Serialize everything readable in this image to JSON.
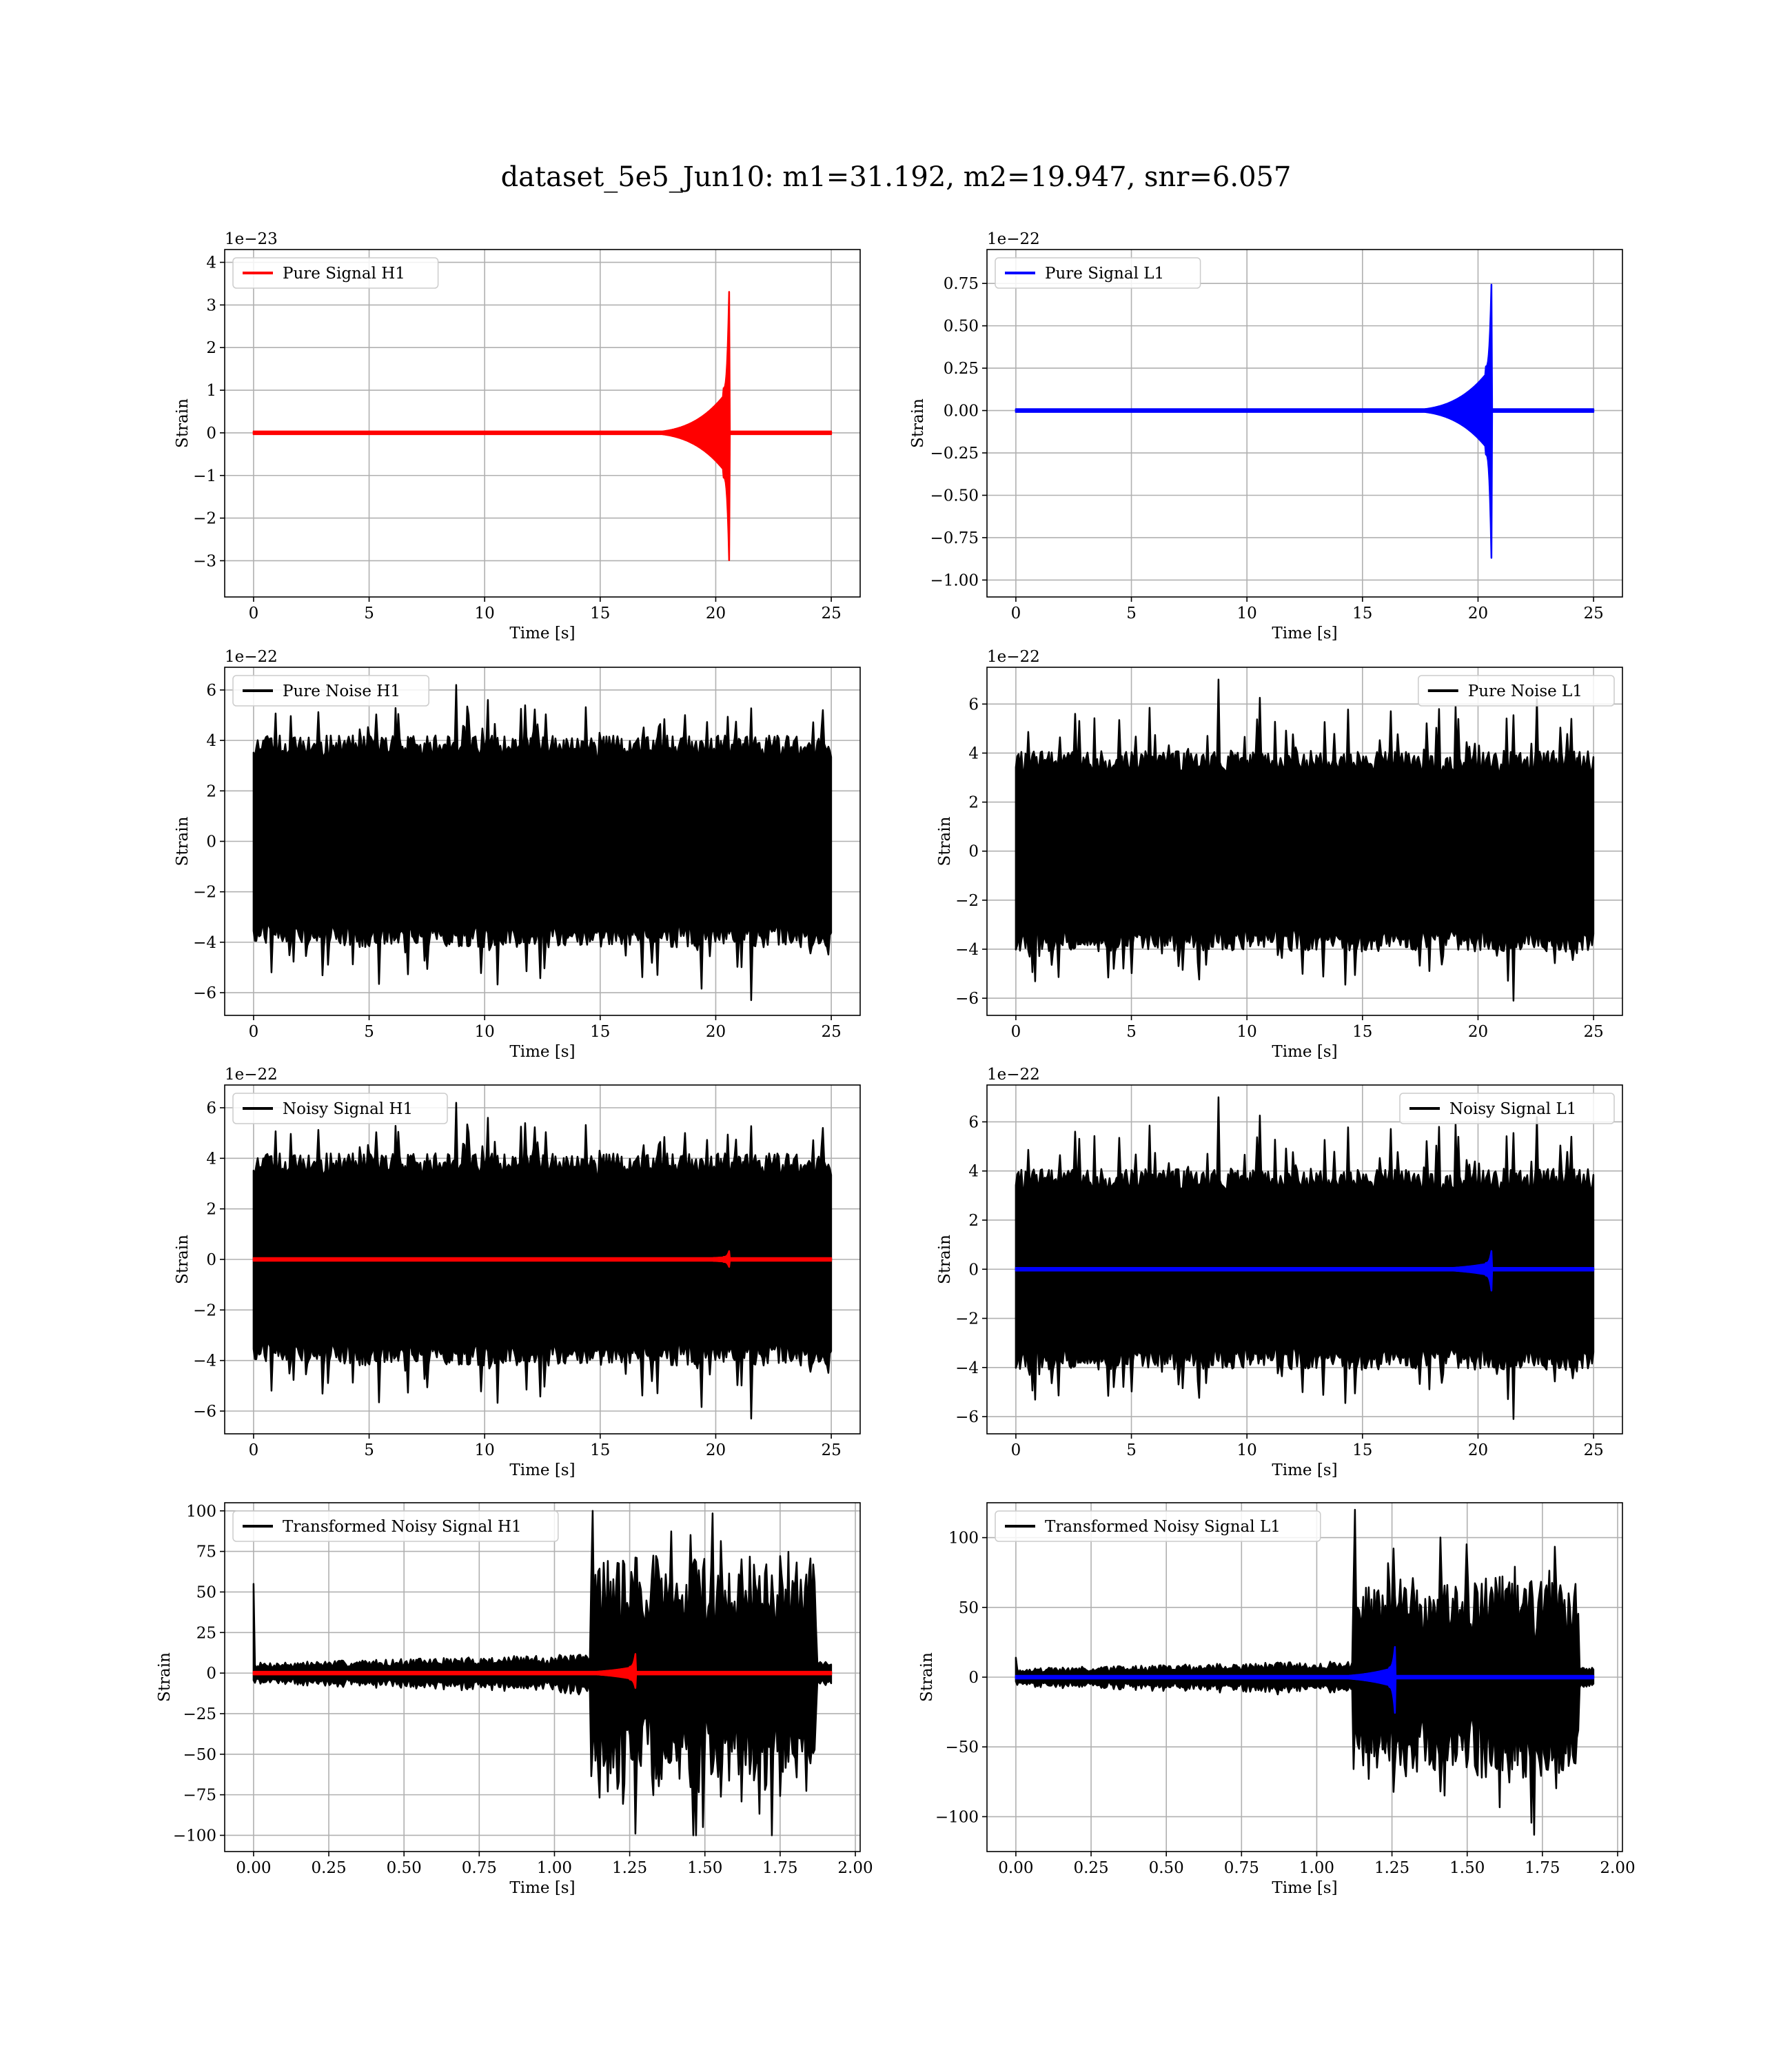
{
  "figure": {
    "suptitle": "dataset_5e5_Jun10: m1=31.192, m2=19.947, snr=6.057"
  },
  "colors": {
    "h1_signal": "#ff0000",
    "l1_signal": "#0000ff",
    "noise": "#000000",
    "grid": "#b0b0b0"
  },
  "chart_data": [
    {
      "type": "line",
      "panel": "pure-signal-h1",
      "xlabel": "Time [s]",
      "ylabel": "Strain",
      "offset_text": "1e−23",
      "xlim": [
        -1.25,
        26.25
      ],
      "ylim": [
        -3.85,
        4.3
      ],
      "xticks": [
        0,
        5,
        10,
        15,
        20,
        25
      ],
      "yticks": [
        -3,
        -2,
        -1,
        0,
        1,
        2,
        3,
        4
      ],
      "xtick_labels": [
        "0",
        "5",
        "10",
        "15",
        "20",
        "25"
      ],
      "ytick_labels": [
        "−3",
        "−2",
        "−1",
        "0",
        "1",
        "2",
        "3",
        "4"
      ],
      "legend": {
        "position": "upper left"
      },
      "grid": true,
      "series": [
        {
          "name": "Pure Signal H1",
          "kind": "chirp",
          "color": "#ff0000",
          "x_start": 0,
          "x_end": 25,
          "t_merger": 20.6,
          "plateau": 1.05,
          "peak_max": 3.9,
          "peak_min": -3.5
        }
      ]
    },
    {
      "type": "line",
      "panel": "pure-signal-l1",
      "xlabel": "Time [s]",
      "ylabel": "Strain",
      "offset_text": "1e−22",
      "xlim": [
        -1.25,
        26.25
      ],
      "ylim": [
        -1.1,
        0.95
      ],
      "xticks": [
        0,
        5,
        10,
        15,
        20,
        25
      ],
      "yticks": [
        -1.0,
        -0.75,
        -0.5,
        -0.25,
        0.0,
        0.25,
        0.5,
        0.75
      ],
      "xtick_labels": [
        "0",
        "5",
        "10",
        "15",
        "20",
        "25"
      ],
      "ytick_labels": [
        "−1.00",
        "−0.75",
        "−0.50",
        "−0.25",
        "0.00",
        "0.25",
        "0.50",
        "0.75"
      ],
      "legend": {
        "position": "upper left"
      },
      "grid": true,
      "series": [
        {
          "name": "Pure Signal L1",
          "kind": "chirp",
          "color": "#0000ff",
          "x_start": 0,
          "x_end": 25,
          "t_merger": 20.6,
          "plateau": 0.26,
          "peak_max": 0.87,
          "peak_min": -1.03
        }
      ]
    },
    {
      "type": "line",
      "panel": "pure-noise-h1",
      "xlabel": "Time [s]",
      "ylabel": "Strain",
      "offset_text": "1e−22",
      "xlim": [
        -1.25,
        26.25
      ],
      "ylim": [
        -6.9,
        6.9
      ],
      "xticks": [
        0,
        5,
        10,
        15,
        20,
        25
      ],
      "yticks": [
        -6,
        -4,
        -2,
        0,
        2,
        4,
        6
      ],
      "xtick_labels": [
        "0",
        "5",
        "10",
        "15",
        "20",
        "25"
      ],
      "ytick_labels": [
        "−6",
        "−4",
        "−2",
        "0",
        "2",
        "4",
        "6"
      ],
      "legend": {
        "position": "upper left"
      },
      "grid": true,
      "series": [
        {
          "name": "Pure Noise H1",
          "kind": "noise",
          "color": "#000000",
          "x_start": 0,
          "x_end": 25,
          "core": 3.3,
          "spike_max": 6.2,
          "spike_min": -6.3,
          "seed": 11
        }
      ]
    },
    {
      "type": "line",
      "panel": "pure-noise-l1",
      "xlabel": "Time [s]",
      "ylabel": "Strain",
      "offset_text": "1e−22",
      "xlim": [
        -1.25,
        26.25
      ],
      "ylim": [
        -6.7,
        7.5
      ],
      "xticks": [
        0,
        5,
        10,
        15,
        20,
        25
      ],
      "yticks": [
        -6,
        -4,
        -2,
        0,
        2,
        4,
        6
      ],
      "xtick_labels": [
        "0",
        "5",
        "10",
        "15",
        "20",
        "25"
      ],
      "ytick_labels": [
        "−6",
        "−4",
        "−2",
        "0",
        "2",
        "4",
        "6"
      ],
      "legend": {
        "position": "upper right"
      },
      "grid": true,
      "series": [
        {
          "name": "Pure Noise L1",
          "kind": "noise",
          "color": "#000000",
          "x_start": 0,
          "x_end": 25,
          "core": 3.2,
          "spike_max": 7.0,
          "spike_min": -6.1,
          "seed": 29
        }
      ]
    },
    {
      "type": "line",
      "panel": "noisy-signal-h1",
      "xlabel": "Time [s]",
      "ylabel": "Strain",
      "offset_text": "1e−22",
      "xlim": [
        -1.25,
        26.25
      ],
      "ylim": [
        -6.9,
        6.9
      ],
      "xticks": [
        0,
        5,
        10,
        15,
        20,
        25
      ],
      "yticks": [
        -6,
        -4,
        -2,
        0,
        2,
        4,
        6
      ],
      "xtick_labels": [
        "0",
        "5",
        "10",
        "15",
        "20",
        "25"
      ],
      "ytick_labels": [
        "−6",
        "−4",
        "−2",
        "0",
        "2",
        "4",
        "6"
      ],
      "legend": {
        "position": "upper left"
      },
      "grid": true,
      "series": [
        {
          "name": "Noisy Signal H1",
          "kind": "noise",
          "color": "#000000",
          "x_start": 0,
          "x_end": 25,
          "core": 3.3,
          "spike_max": 6.2,
          "spike_min": -6.3,
          "seed": 11
        },
        {
          "name": "",
          "kind": "chirp",
          "color": "#ff0000",
          "x_start": 0,
          "x_end": 25,
          "t_merger": 20.6,
          "plateau": 0.1,
          "peak_max": 0.39,
          "peak_min": -0.35
        }
      ]
    },
    {
      "type": "line",
      "panel": "noisy-signal-l1",
      "xlabel": "Time [s]",
      "ylabel": "Strain",
      "offset_text": "1e−22",
      "xlim": [
        -1.25,
        26.25
      ],
      "ylim": [
        -6.7,
        7.5
      ],
      "xticks": [
        0,
        5,
        10,
        15,
        20,
        25
      ],
      "yticks": [
        -6,
        -4,
        -2,
        0,
        2,
        4,
        6
      ],
      "xtick_labels": [
        "0",
        "5",
        "10",
        "15",
        "20",
        "25"
      ],
      "ytick_labels": [
        "−6",
        "−4",
        "−2",
        "0",
        "2",
        "4",
        "6"
      ],
      "legend": {
        "position": "upper right"
      },
      "grid": true,
      "series": [
        {
          "name": "Noisy Signal L1",
          "kind": "noise",
          "color": "#000000",
          "x_start": 0,
          "x_end": 25,
          "core": 3.2,
          "spike_max": 7.0,
          "spike_min": -6.1,
          "seed": 29
        },
        {
          "name": "",
          "kind": "chirp",
          "color": "#0000ff",
          "x_start": 0,
          "x_end": 25,
          "t_merger": 20.6,
          "plateau": 0.26,
          "peak_max": 0.87,
          "peak_min": -1.03
        }
      ]
    },
    {
      "type": "line",
      "panel": "transformed-noisy-signal-h1",
      "xlabel": "Time [s]",
      "ylabel": "Strain",
      "offset_text": "",
      "xlim": [
        -0.096,
        2.016
      ],
      "ylim": [
        -110,
        105
      ],
      "xticks": [
        0.0,
        0.25,
        0.5,
        0.75,
        1.0,
        1.25,
        1.5,
        1.75,
        2.0
      ],
      "yticks": [
        -100,
        -75,
        -50,
        -25,
        0,
        25,
        50,
        75,
        100
      ],
      "xtick_labels": [
        "0.00",
        "0.25",
        "0.50",
        "0.75",
        "1.00",
        "1.25",
        "1.50",
        "1.75",
        "2.00"
      ],
      "ytick_labels": [
        "−100",
        "−75",
        "−50",
        "−25",
        "0",
        "25",
        "50",
        "75",
        "100"
      ],
      "legend": {
        "position": "upper left"
      },
      "grid": true,
      "series": [
        {
          "name": "Transformed Noisy Signal H1",
          "kind": "whitened",
          "color": "#000000",
          "x_start": 0,
          "x_end": 1.92,
          "t_jump": 1.12,
          "t_end": 1.87,
          "low": 9,
          "high": 50,
          "spike_max": 100,
          "spike_min": -100,
          "initial_spike": 55,
          "seed": 7
        },
        {
          "name": "",
          "kind": "chirp",
          "color": "#ff0000",
          "x_start": 0,
          "x_end": 1.92,
          "t_merger": 1.27,
          "plateau": 4,
          "peak_max": 13,
          "peak_min": -10
        }
      ]
    },
    {
      "type": "line",
      "panel": "transformed-noisy-signal-l1",
      "xlabel": "Time [s]",
      "ylabel": "Strain",
      "offset_text": "",
      "xlim": [
        -0.096,
        2.016
      ],
      "ylim": [
        -125,
        125
      ],
      "xticks": [
        0.0,
        0.25,
        0.5,
        0.75,
        1.0,
        1.25,
        1.5,
        1.75,
        2.0
      ],
      "yticks": [
        -100,
        -50,
        0,
        50,
        100
      ],
      "xtick_labels": [
        "0.00",
        "0.25",
        "0.50",
        "0.75",
        "1.00",
        "1.25",
        "1.50",
        "1.75",
        "2.00"
      ],
      "ytick_labels": [
        "−100",
        "−50",
        "0",
        "50",
        "100"
      ],
      "legend": {
        "position": "upper left"
      },
      "grid": true,
      "series": [
        {
          "name": "Transformed Noisy Signal L1",
          "kind": "whitened",
          "color": "#000000",
          "x_start": 0,
          "x_end": 1.92,
          "t_jump": 1.12,
          "t_end": 1.87,
          "low": 9,
          "high": 50,
          "spike_max": 120,
          "spike_min": -113,
          "initial_spike": 14,
          "seed": 19
        },
        {
          "name": "",
          "kind": "chirp",
          "color": "#0000ff",
          "x_start": 0,
          "x_end": 1.92,
          "t_merger": 1.26,
          "plateau": 7,
          "peak_max": 22,
          "peak_min": -26
        }
      ]
    }
  ]
}
